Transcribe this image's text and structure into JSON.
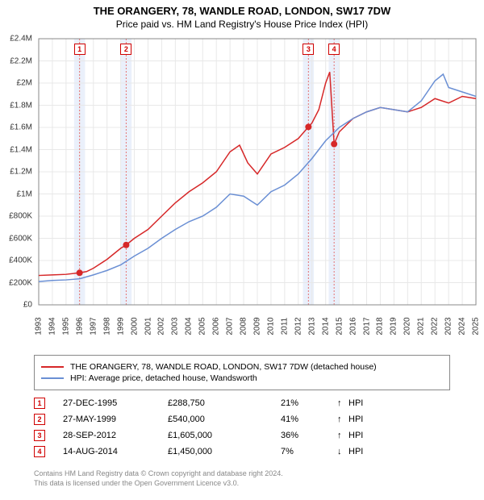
{
  "title_line1": "THE ORANGERY, 78, WANDLE ROAD, LONDON, SW17 7DW",
  "title_line2": "Price paid vs. HM Land Registry's House Price Index (HPI)",
  "chart": {
    "type": "line",
    "background_color": "#ffffff",
    "grid_color": "#e8e8e8",
    "plot_border_color": "#888888",
    "x_axis": {
      "min_year": 1993,
      "max_year": 2025,
      "tick_years": [
        1993,
        1994,
        1995,
        1996,
        1997,
        1998,
        1999,
        2000,
        2001,
        2002,
        2003,
        2004,
        2005,
        2006,
        2007,
        2008,
        2009,
        2010,
        2011,
        2012,
        2013,
        2014,
        2015,
        2016,
        2017,
        2018,
        2019,
        2020,
        2021,
        2022,
        2023,
        2024,
        2025
      ],
      "label_fontsize": 10
    },
    "y_axis": {
      "min": 0,
      "max": 2400000,
      "ticks": [
        0,
        200000,
        400000,
        600000,
        800000,
        1000000,
        1200000,
        1400000,
        1600000,
        1800000,
        2000000,
        2200000,
        2400000
      ],
      "tick_labels": [
        "£0",
        "£200K",
        "£400K",
        "£600K",
        "£800K",
        "£1M",
        "£1.2M",
        "£1.4M",
        "£1.6M",
        "£1.8M",
        "£2M",
        "£2.2M",
        "£2.4M"
      ],
      "label_fontsize": 10
    },
    "series": [
      {
        "name": "THE ORANGERY, 78, WANDLE ROAD, LONDON, SW17 7DW (detached house)",
        "color": "#d62728",
        "line_width": 1.5,
        "data": [
          [
            1993.0,
            265000
          ],
          [
            1994.0,
            270000
          ],
          [
            1995.0,
            275000
          ],
          [
            1995.99,
            288750
          ],
          [
            1996.5,
            300000
          ],
          [
            1997.0,
            330000
          ],
          [
            1997.5,
            370000
          ],
          [
            1998.0,
            410000
          ],
          [
            1998.5,
            460000
          ],
          [
            1999.0,
            510000
          ],
          [
            1999.4,
            540000
          ],
          [
            2000.0,
            600000
          ],
          [
            2001.0,
            680000
          ],
          [
            2002.0,
            800000
          ],
          [
            2003.0,
            920000
          ],
          [
            2004.0,
            1020000
          ],
          [
            2005.0,
            1100000
          ],
          [
            2006.0,
            1200000
          ],
          [
            2007.0,
            1380000
          ],
          [
            2007.7,
            1440000
          ],
          [
            2008.3,
            1280000
          ],
          [
            2009.0,
            1180000
          ],
          [
            2010.0,
            1360000
          ],
          [
            2011.0,
            1420000
          ],
          [
            2012.0,
            1500000
          ],
          [
            2012.74,
            1605000
          ],
          [
            2013.0,
            1640000
          ],
          [
            2013.5,
            1760000
          ],
          [
            2014.0,
            2000000
          ],
          [
            2014.3,
            2100000
          ],
          [
            2014.62,
            1450000
          ],
          [
            2015.0,
            1560000
          ],
          [
            2016.0,
            1680000
          ],
          [
            2017.0,
            1740000
          ],
          [
            2018.0,
            1780000
          ],
          [
            2019.0,
            1760000
          ],
          [
            2020.0,
            1740000
          ],
          [
            2021.0,
            1780000
          ],
          [
            2022.0,
            1860000
          ],
          [
            2023.0,
            1820000
          ],
          [
            2024.0,
            1880000
          ],
          [
            2025.0,
            1860000
          ]
        ]
      },
      {
        "name": "HPI: Average price, detached house, Wandsworth",
        "color": "#6a8fd4",
        "line_width": 1.5,
        "data": [
          [
            1993.0,
            210000
          ],
          [
            1994.0,
            220000
          ],
          [
            1995.0,
            225000
          ],
          [
            1996.0,
            235000
          ],
          [
            1997.0,
            270000
          ],
          [
            1998.0,
            310000
          ],
          [
            1999.0,
            360000
          ],
          [
            2000.0,
            440000
          ],
          [
            2001.0,
            510000
          ],
          [
            2002.0,
            600000
          ],
          [
            2003.0,
            680000
          ],
          [
            2004.0,
            750000
          ],
          [
            2005.0,
            800000
          ],
          [
            2006.0,
            880000
          ],
          [
            2007.0,
            1000000
          ],
          [
            2008.0,
            980000
          ],
          [
            2009.0,
            900000
          ],
          [
            2010.0,
            1020000
          ],
          [
            2011.0,
            1080000
          ],
          [
            2012.0,
            1180000
          ],
          [
            2013.0,
            1320000
          ],
          [
            2014.0,
            1480000
          ],
          [
            2015.0,
            1600000
          ],
          [
            2016.0,
            1680000
          ],
          [
            2017.0,
            1740000
          ],
          [
            2018.0,
            1780000
          ],
          [
            2019.0,
            1760000
          ],
          [
            2020.0,
            1740000
          ],
          [
            2021.0,
            1840000
          ],
          [
            2022.0,
            2020000
          ],
          [
            2022.6,
            2080000
          ],
          [
            2023.0,
            1960000
          ],
          [
            2024.0,
            1920000
          ],
          [
            2025.0,
            1880000
          ]
        ]
      }
    ],
    "event_markers": [
      {
        "id": "1",
        "year": 1995.99,
        "value": 288750,
        "band_color": "#eaf0fb",
        "marker_color": "#d62728"
      },
      {
        "id": "2",
        "year": 1999.4,
        "value": 540000,
        "band_color": "#eaf0fb",
        "marker_color": "#d62728"
      },
      {
        "id": "3",
        "year": 2012.74,
        "value": 1605000,
        "band_color": "#eaf0fb",
        "marker_color": "#d62728"
      },
      {
        "id": "4",
        "year": 2014.62,
        "value": 1450000,
        "band_color": "#eaf0fb",
        "marker_color": "#d62728"
      }
    ],
    "event_band_width_years": 0.8,
    "event_dashed_line_color": "#e57373"
  },
  "legend": {
    "items": [
      {
        "color": "#d62728",
        "label": "THE ORANGERY, 78, WANDLE ROAD, LONDON, SW17 7DW (detached house)"
      },
      {
        "color": "#6a8fd4",
        "label": "HPI: Average price, detached house, Wandsworth"
      }
    ],
    "border_color": "#888888",
    "fontsize": 10.5
  },
  "events_table": {
    "rows": [
      {
        "id": "1",
        "date": "27-DEC-1995",
        "price": "£288,750",
        "pct": "21%",
        "arrow": "↑",
        "suffix": "HPI"
      },
      {
        "id": "2",
        "date": "27-MAY-1999",
        "price": "£540,000",
        "pct": "41%",
        "arrow": "↑",
        "suffix": "HPI"
      },
      {
        "id": "3",
        "date": "28-SEP-2012",
        "price": "£1,605,000",
        "pct": "36%",
        "arrow": "↑",
        "suffix": "HPI"
      },
      {
        "id": "4",
        "date": "14-AUG-2014",
        "price": "£1,450,000",
        "pct": "7%",
        "arrow": "↓",
        "suffix": "HPI"
      }
    ],
    "marker_border_color": "#d00000",
    "fontsize": 11
  },
  "attribution": {
    "line1": "Contains HM Land Registry data © Crown copyright and database right 2024.",
    "line2": "This data is licensed under the Open Government Licence v3.0.",
    "color": "#888888",
    "fontsize": 9
  }
}
